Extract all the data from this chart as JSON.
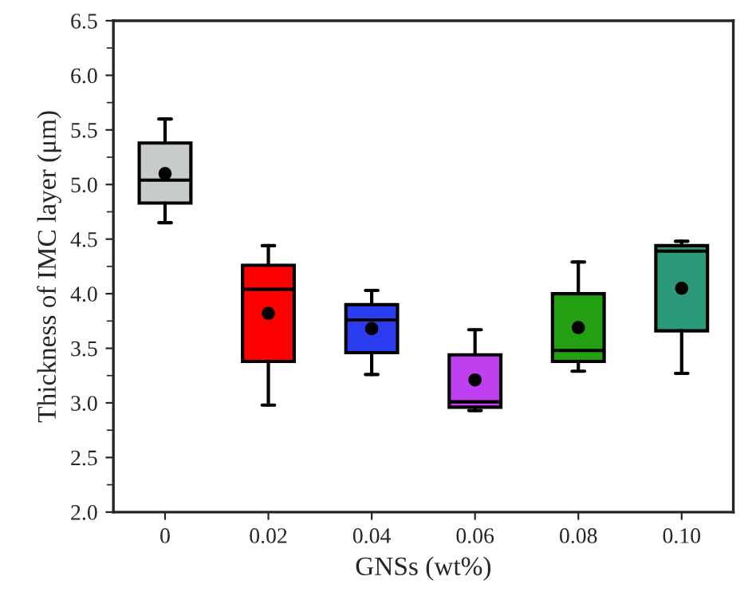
{
  "chart_data": {
    "type": "box",
    "xlabel": "GNSs (wt%)",
    "ylabel": "Thickness of IMC layer (μm)",
    "categories": [
      "0",
      "0.02",
      "0.04",
      "0.06",
      "0.08",
      "0.10"
    ],
    "colors": [
      "#c8ccc9",
      "#ff0000",
      "#2b3bef",
      "#c040f0",
      "#22a012",
      "#2a9a78"
    ],
    "boxes": [
      {
        "low": 4.65,
        "q1": 4.83,
        "median": 5.04,
        "q3": 5.38,
        "high": 5.6,
        "mean": 5.1
      },
      {
        "low": 2.98,
        "q1": 3.38,
        "median": 4.04,
        "q3": 4.26,
        "high": 4.44,
        "mean": 3.82
      },
      {
        "low": 3.26,
        "q1": 3.46,
        "median": 3.76,
        "q3": 3.9,
        "high": 4.03,
        "mean": 3.68
      },
      {
        "low": 2.93,
        "q1": 2.96,
        "median": 3.01,
        "q3": 3.44,
        "high": 3.67,
        "mean": 3.21
      },
      {
        "low": 3.29,
        "q1": 3.38,
        "median": 3.48,
        "q3": 4.0,
        "high": 4.29,
        "mean": 3.69
      },
      {
        "low": 3.27,
        "q1": 3.66,
        "median": 4.39,
        "q3": 4.44,
        "high": 4.48,
        "mean": 4.05
      }
    ],
    "ylim": [
      2.0,
      6.5
    ],
    "yticks": [
      {
        "value": 2,
        "label": "2.0"
      },
      2.5,
      {
        "value": 3,
        "label": "3.0"
      },
      3.5,
      {
        "value": 4,
        "label": "4.0"
      },
      4.5,
      {
        "value": 5,
        "label": "5.0"
      },
      5.5,
      {
        "value": 6,
        "label": "6.0"
      },
      6.5
    ],
    "grid": false,
    "legend": false
  }
}
